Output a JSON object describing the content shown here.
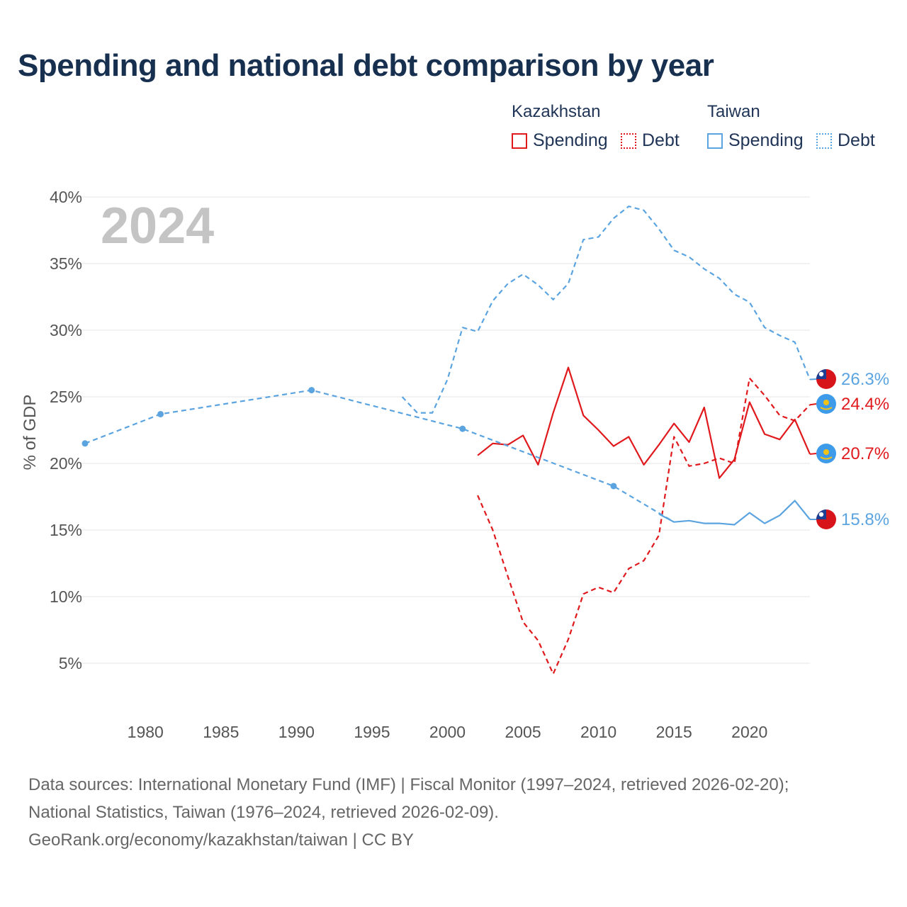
{
  "title": "Spending and national debt comparison by year",
  "legend": {
    "kazakhstan_label": "Kazakhstan",
    "taiwan_label": "Taiwan",
    "spending_label": "Spending",
    "debt_label": "Debt"
  },
  "colors": {
    "kazakhstan": "#e0191d",
    "taiwan": "#5ba4e0",
    "grid": "#e6e6e6",
    "year_watermark": "#c4c4c4",
    "axis_text": "#555555"
  },
  "year_watermark": "2024",
  "end_labels": {
    "taiwan_debt": "26.3%",
    "kazakhstan_debt": "24.4%",
    "kazakhstan_spending": "20.7%",
    "taiwan_spending": "15.8%"
  },
  "flag_icons": {
    "taiwan": "taiwan-flag-icon",
    "kazakhstan": "kazakhstan-flag-icon"
  },
  "sources": {
    "line1": "Data sources: International Monetary Fund (IMF) | Fiscal Monitor (1997–2024, retrieved 2026-02-20);",
    "line2": "National Statistics, Taiwan (1976–2024, retrieved 2026-02-09).",
    "line3": "GeoRank.org/economy/kazakhstan/taiwan | CC BY"
  },
  "chart_data": {
    "type": "line",
    "title": "Spending and national debt comparison by year",
    "xlabel": "",
    "ylabel": "% of GDP",
    "xlim": [
      1976,
      2024
    ],
    "ylim": [
      0,
      40
    ],
    "x_ticks": [
      1980,
      1985,
      1990,
      1995,
      2000,
      2005,
      2010,
      2015,
      2020
    ],
    "y_ticks": [
      5,
      10,
      15,
      20,
      25,
      30,
      35,
      40
    ],
    "y_tick_labels": [
      "5%",
      "10%",
      "15%",
      "20%",
      "25%",
      "30%",
      "35%",
      "40%"
    ],
    "grid": true,
    "series": [
      {
        "name": "Kazakhstan Spending",
        "country": "Kazakhstan",
        "measure": "Spending",
        "style": "solid",
        "color": "#e0191d",
        "x": [
          2002,
          2003,
          2004,
          2005,
          2006,
          2007,
          2008,
          2009,
          2010,
          2011,
          2012,
          2013,
          2014,
          2015,
          2016,
          2017,
          2018,
          2019,
          2020,
          2021,
          2022,
          2023,
          2024
        ],
        "y": [
          20.6,
          21.5,
          21.4,
          22.1,
          19.9,
          23.8,
          27.2,
          23.6,
          22.5,
          21.3,
          22.0,
          19.9,
          21.4,
          23.0,
          21.6,
          24.2,
          18.9,
          20.3,
          24.6,
          22.2,
          21.8,
          23.3,
          20.7
        ]
      },
      {
        "name": "Kazakhstan Debt",
        "country": "Kazakhstan",
        "measure": "Debt",
        "style": "dashed",
        "color": "#e0191d",
        "x": [
          2002,
          2003,
          2004,
          2005,
          2006,
          2007,
          2008,
          2009,
          2010,
          2011,
          2012,
          2013,
          2014,
          2015,
          2016,
          2017,
          2018,
          2019,
          2020,
          2021,
          2022,
          2023,
          2024
        ],
        "y": [
          17.6,
          15.0,
          11.5,
          8.1,
          6.7,
          4.2,
          6.8,
          10.2,
          10.7,
          10.3,
          12.1,
          12.7,
          14.6,
          22.0,
          19.8,
          20.0,
          20.4,
          20.0,
          26.4,
          25.1,
          23.6,
          23.2,
          24.4
        ]
      },
      {
        "name": "Taiwan Spending",
        "country": "Taiwan",
        "measure": "Spending",
        "style": "solid",
        "color": "#5ba4e0",
        "x": [
          2014,
          2015,
          2016,
          2017,
          2018,
          2019,
          2020,
          2021,
          2022,
          2023,
          2024
        ],
        "y": [
          16.2,
          15.6,
          15.7,
          15.5,
          15.5,
          15.4,
          16.3,
          15.5,
          16.1,
          17.2,
          15.8
        ]
      },
      {
        "name": "Taiwan Debt (Fiscal Monitor)",
        "country": "Taiwan",
        "measure": "Debt",
        "style": "dashed",
        "color": "#5ba4e0",
        "x": [
          1997,
          1998,
          1999,
          2000,
          2001,
          2002,
          2003,
          2004,
          2005,
          2006,
          2007,
          2008,
          2009,
          2010,
          2011,
          2012,
          2013,
          2014,
          2015,
          2016,
          2017,
          2018,
          2019,
          2020,
          2021,
          2022,
          2023,
          2024
        ],
        "y": [
          25.0,
          23.8,
          23.8,
          26.3,
          30.2,
          29.9,
          32.2,
          33.5,
          34.2,
          33.4,
          32.3,
          33.5,
          36.8,
          37.0,
          38.4,
          39.3,
          39.0,
          37.6,
          36.0,
          35.5,
          34.6,
          33.9,
          32.7,
          32.1,
          30.2,
          29.6,
          29.1,
          26.3
        ]
      },
      {
        "name": "Taiwan Debt (National Statistics)",
        "country": "Taiwan",
        "measure": "Debt",
        "style": "dashed-with-markers",
        "color": "#5ba4e0",
        "x": [
          1976,
          1981,
          1991,
          2001,
          2011,
          2015
        ],
        "y": [
          21.5,
          23.7,
          25.5,
          22.6,
          18.3,
          15.6
        ],
        "markers_at": [
          1976,
          1981,
          1991,
          2001,
          2011
        ]
      }
    ]
  }
}
